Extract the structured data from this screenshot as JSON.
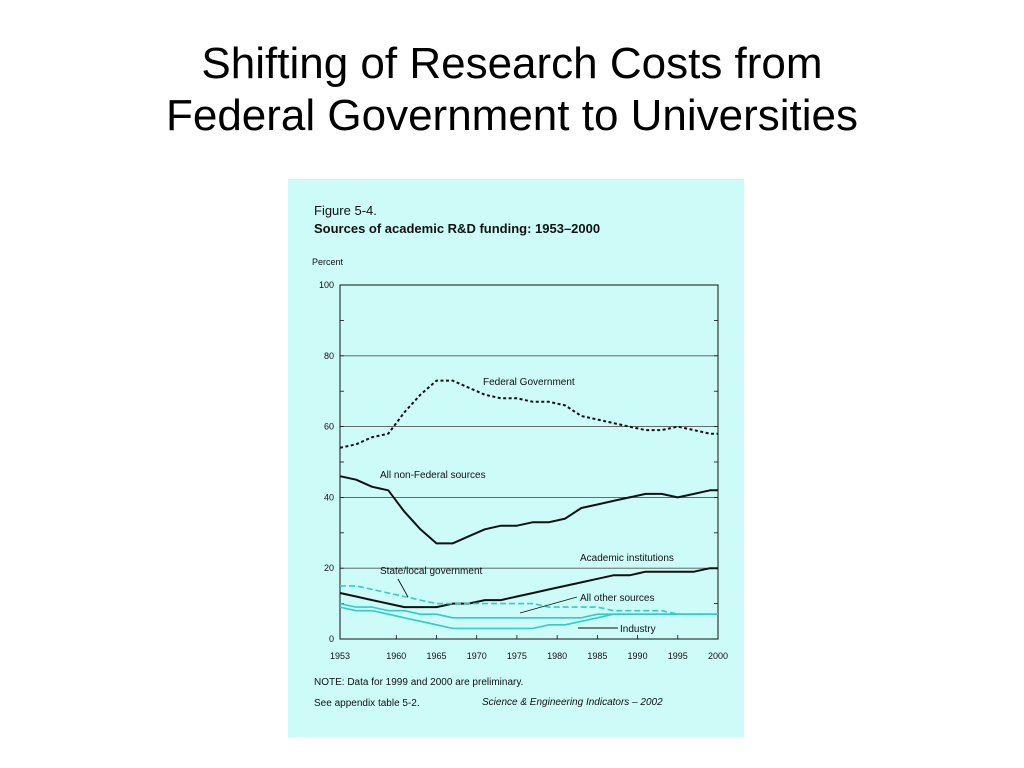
{
  "slide": {
    "title_line1": "Shifting of Research Costs from",
    "title_line2": "Federal Government to Universities"
  },
  "figure": {
    "label": "Figure 5-4.",
    "title": "Sources of academic R&D funding: 1953–2000",
    "note": "NOTE: Data for 1999 and 2000 are preliminary.",
    "see": "See appendix table 5-2.",
    "source": "Science & Engineering Indicators – 2002"
  },
  "chart_data": {
    "type": "line",
    "title": "Sources of academic R&D funding: 1953–2000",
    "ylabel": "Percent",
    "xlabel": "",
    "xlim": [
      1953,
      2000
    ],
    "ylim": [
      0,
      100
    ],
    "xticks": [
      1953,
      1960,
      1965,
      1970,
      1975,
      1980,
      1985,
      1990,
      1995,
      2000
    ],
    "yticks": [
      0,
      20,
      40,
      60,
      80,
      100
    ],
    "grid": "horizontal",
    "series": [
      {
        "name": "Federal Government",
        "color": "#111111",
        "dash": "dotted",
        "x": [
          1953,
          1955,
          1957,
          1959,
          1961,
          1963,
          1965,
          1967,
          1969,
          1971,
          1973,
          1975,
          1977,
          1979,
          1981,
          1983,
          1985,
          1987,
          1989,
          1991,
          1993,
          1995,
          1997,
          1999,
          2000
        ],
        "y": [
          54,
          55,
          57,
          58,
          64,
          69,
          73,
          73,
          71,
          69,
          68,
          68,
          67,
          67,
          66,
          63,
          62,
          61,
          60,
          59,
          59,
          60,
          59,
          58,
          58
        ]
      },
      {
        "name": "All non-Federal sources",
        "color": "#111111",
        "dash": "solid",
        "x": [
          1953,
          1955,
          1957,
          1959,
          1961,
          1963,
          1965,
          1967,
          1969,
          1971,
          1973,
          1975,
          1977,
          1979,
          1981,
          1983,
          1985,
          1987,
          1989,
          1991,
          1993,
          1995,
          1997,
          1999,
          2000
        ],
        "y": [
          46,
          45,
          43,
          42,
          36,
          31,
          27,
          27,
          29,
          31,
          32,
          32,
          33,
          33,
          34,
          37,
          38,
          39,
          40,
          41,
          41,
          40,
          41,
          42,
          42
        ]
      },
      {
        "name": "Academic institutions",
        "color": "#111111",
        "dash": "solid",
        "x": [
          1953,
          1955,
          1957,
          1959,
          1961,
          1963,
          1965,
          1967,
          1969,
          1971,
          1973,
          1975,
          1977,
          1979,
          1981,
          1983,
          1985,
          1987,
          1989,
          1991,
          1993,
          1995,
          1997,
          1999,
          2000
        ],
        "y": [
          13,
          12,
          11,
          10,
          9,
          9,
          9,
          10,
          10,
          11,
          11,
          12,
          13,
          14,
          15,
          16,
          17,
          18,
          18,
          19,
          19,
          19,
          19,
          20,
          20
        ]
      },
      {
        "name": "State/local government",
        "color": "#33ccc4",
        "dash": "dashed",
        "x": [
          1953,
          1955,
          1957,
          1959,
          1961,
          1963,
          1965,
          1967,
          1969,
          1971,
          1973,
          1975,
          1977,
          1979,
          1981,
          1983,
          1985,
          1987,
          1989,
          1991,
          1993,
          1995,
          1997,
          1999,
          2000
        ],
        "y": [
          15,
          15,
          14,
          13,
          12,
          11,
          10,
          10,
          10,
          10,
          10,
          10,
          10,
          9,
          9,
          9,
          9,
          8,
          8,
          8,
          8,
          7,
          7,
          7,
          7
        ]
      },
      {
        "name": "All other sources",
        "color": "#33ccc4",
        "dash": "solid",
        "x": [
          1953,
          1955,
          1957,
          1959,
          1961,
          1963,
          1965,
          1967,
          1969,
          1971,
          1973,
          1975,
          1977,
          1979,
          1981,
          1983,
          1985,
          1987,
          1989,
          1991,
          1993,
          1995,
          1997,
          1999,
          2000
        ],
        "y": [
          10,
          9,
          9,
          8,
          8,
          7,
          7,
          6,
          6,
          6,
          6,
          6,
          6,
          6,
          6,
          6,
          7,
          7,
          7,
          7,
          7,
          7,
          7,
          7,
          7
        ]
      },
      {
        "name": "Industry",
        "color": "#33ccc4",
        "dash": "solid",
        "x": [
          1953,
          1955,
          1957,
          1959,
          1961,
          1963,
          1965,
          1967,
          1969,
          1971,
          1973,
          1975,
          1977,
          1979,
          1981,
          1983,
          1985,
          1987,
          1989,
          1991,
          1993,
          1995,
          1997,
          1999,
          2000
        ],
        "y": [
          9,
          8,
          8,
          7,
          6,
          5,
          4,
          3,
          3,
          3,
          3,
          3,
          3,
          4,
          4,
          5,
          6,
          7,
          7,
          7,
          7,
          7,
          7,
          7,
          7
        ]
      }
    ],
    "annotations": [
      {
        "text": "Federal Government",
        "series": 0
      },
      {
        "text": "All non-Federal sources",
        "series": 1
      },
      {
        "text": "Academic institutions",
        "series": 2
      },
      {
        "text": "State/local government",
        "series": 3
      },
      {
        "text": "All other sources",
        "series": 4
      },
      {
        "text": "Industry",
        "series": 5
      }
    ]
  }
}
